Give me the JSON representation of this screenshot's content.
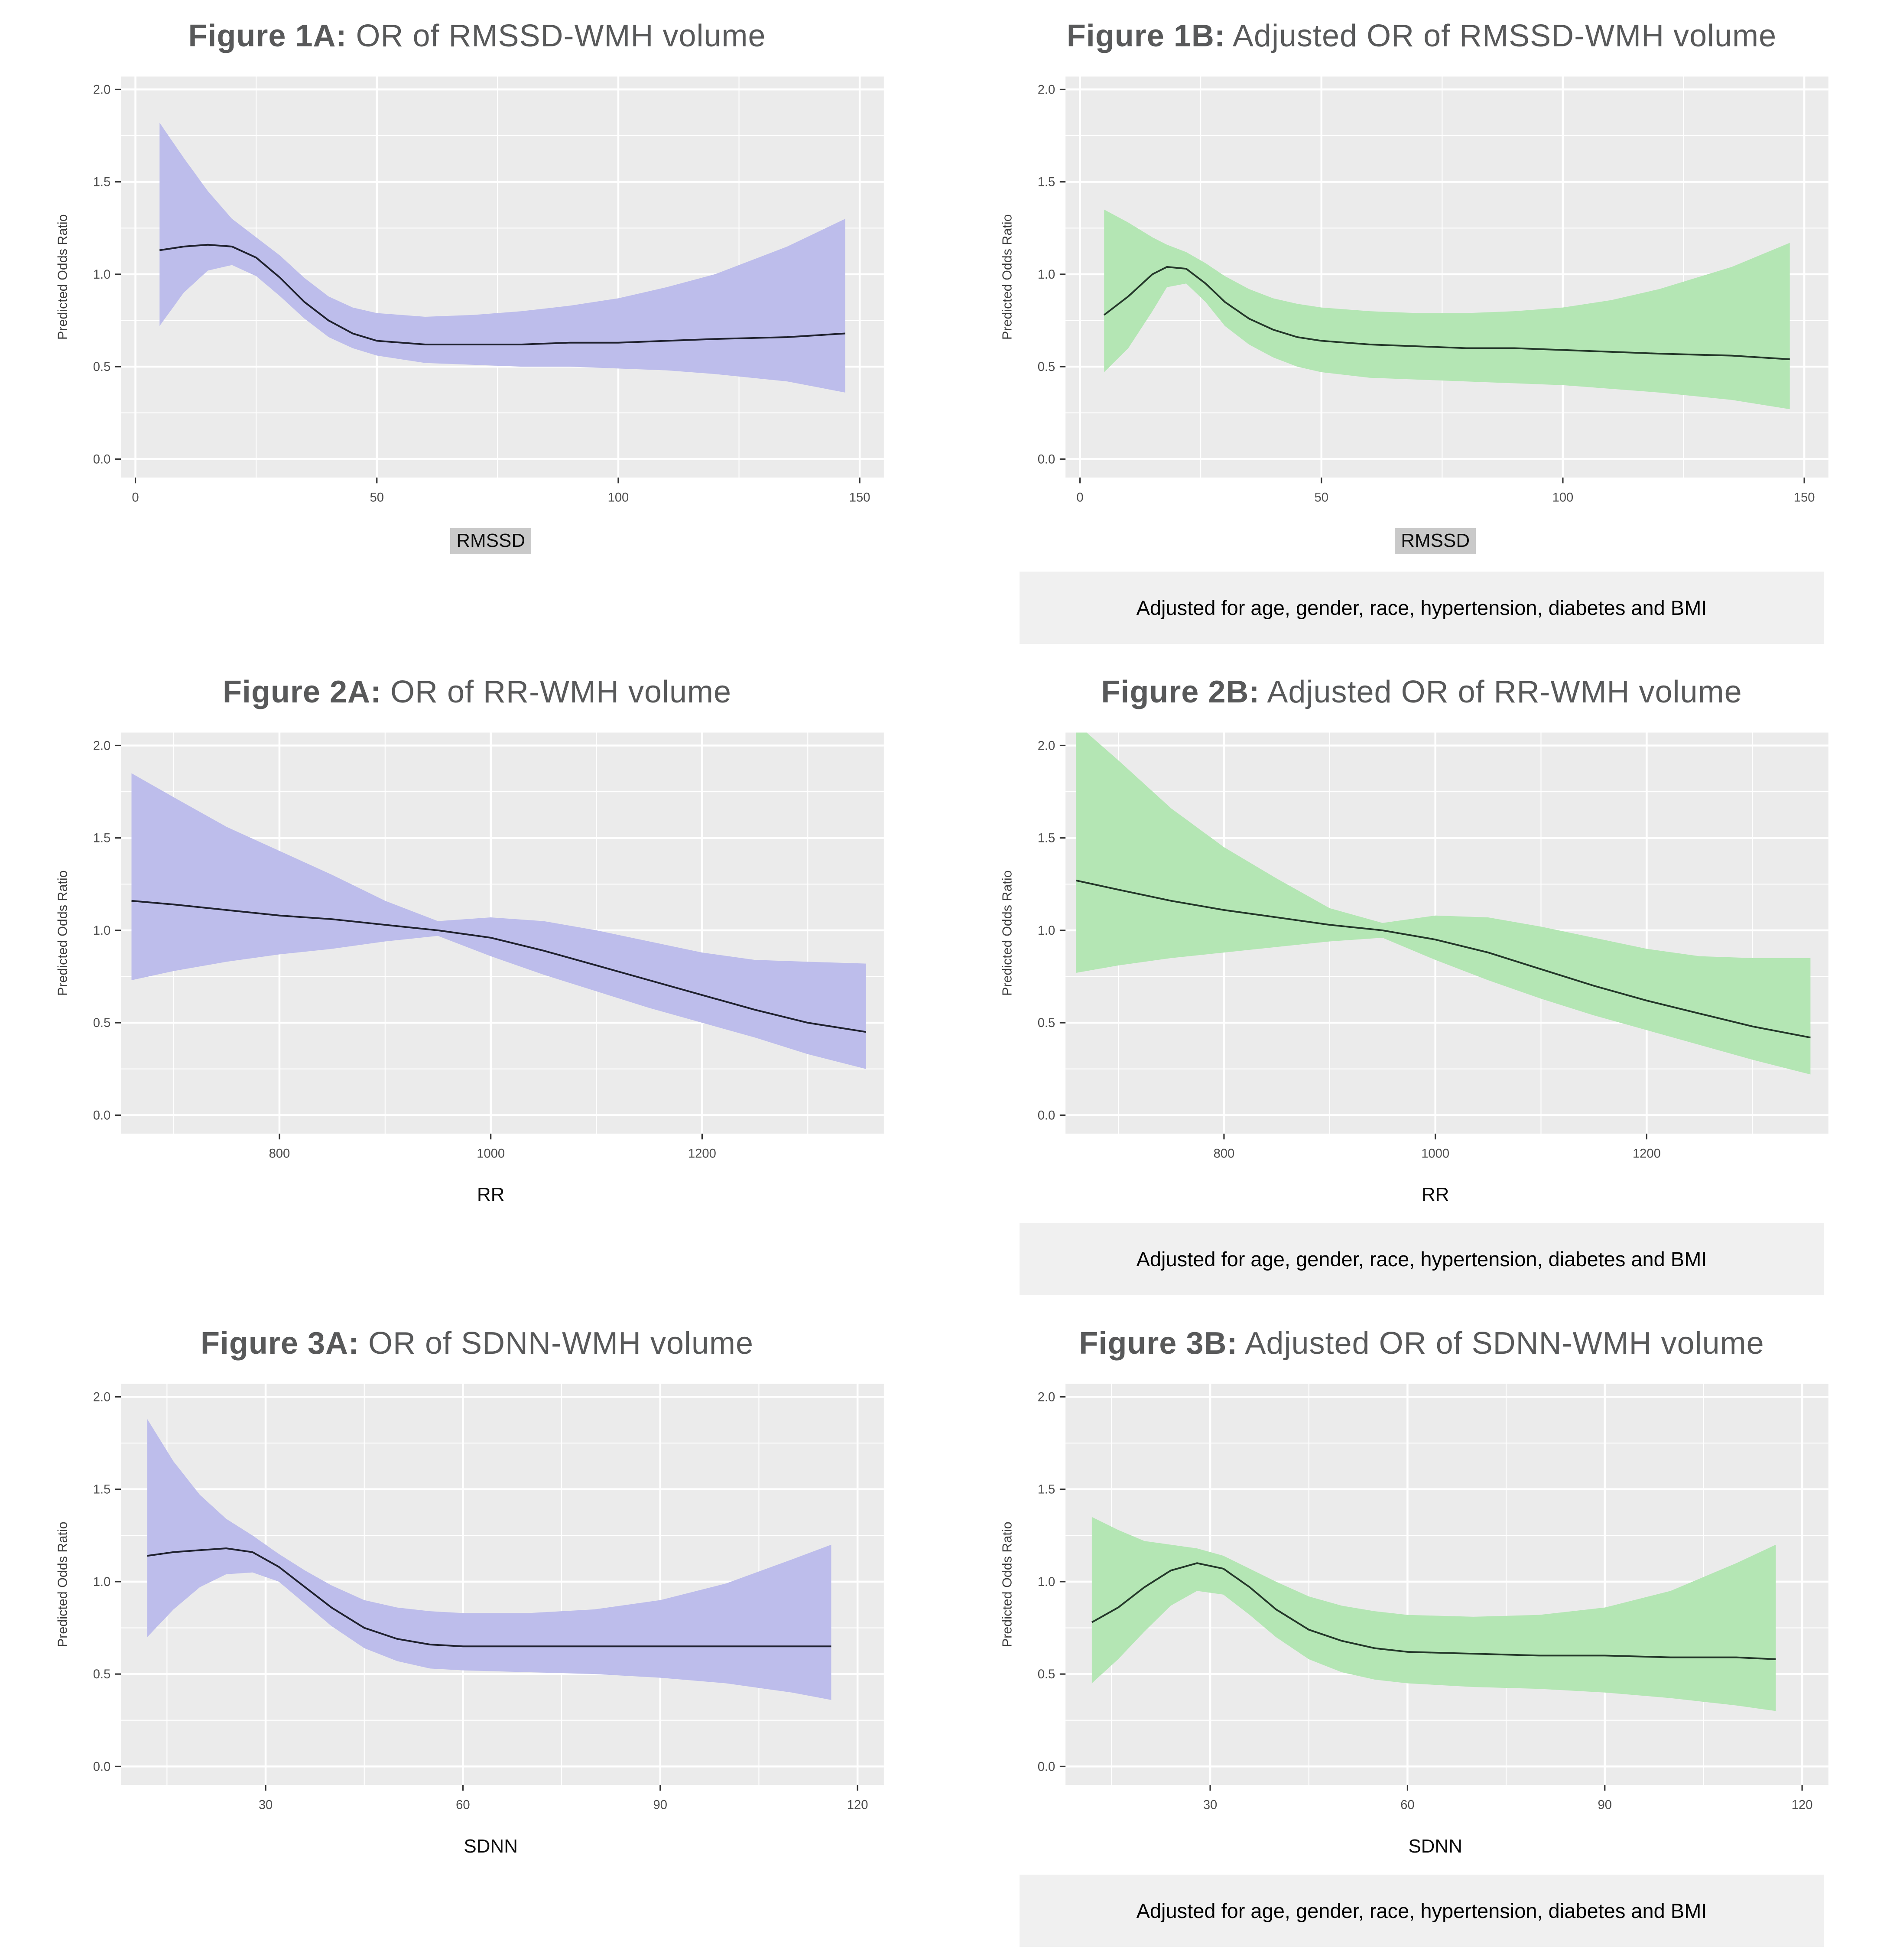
{
  "colors": {
    "panel_bg": "#ebebeb",
    "grid_major": "#ffffff",
    "grid_minor": "#ffffff",
    "tick_mark": "#333333",
    "tick_label": "#4d4d4d",
    "axis_title": "#3d3d3d",
    "figure_title": "#58595a",
    "caption_bg": "#f0f0f0",
    "xlabel_highlight_bg": "#c9c9c9",
    "band_purple": "#bdbdeb",
    "band_green": "#b4e6b4",
    "line_dark_navy": "#20222f",
    "line_dark_green": "#24382a"
  },
  "figures": [
    {
      "id": "1A",
      "title_bold": "Figure 1A:",
      "title_rest": " OR of RMSSD-WMH volume",
      "xlabel": "RMSSD",
      "xlabel_highlight": true,
      "ylabel": "Predicted Odds Ratio",
      "caption": ""
    },
    {
      "id": "1B",
      "title_bold": "Figure 1B:",
      "title_rest": " Adjusted OR of RMSSD-WMH volume",
      "xlabel": "RMSSD",
      "xlabel_highlight": true,
      "ylabel": "Predicted Odds Ratio",
      "caption": "Adjusted for age, gender, race, hypertension, diabetes and BMI"
    },
    {
      "id": "2A",
      "title_bold": "Figure 2A:",
      "title_rest": " OR of RR-WMH volume",
      "xlabel": "RR",
      "xlabel_highlight": false,
      "ylabel": "Predicted Odds Ratio",
      "caption": ""
    },
    {
      "id": "2B",
      "title_bold": "Figure 2B:",
      "title_rest": " Adjusted OR of RR-WMH volume",
      "xlabel": "RR",
      "xlabel_highlight": false,
      "ylabel": "Predicted Odds Ratio",
      "caption": "Adjusted for age, gender, race, hypertension, diabetes and BMI"
    },
    {
      "id": "3A",
      "title_bold": "Figure 3A:",
      "title_rest": " OR of SDNN-WMH volume",
      "xlabel": "SDNN",
      "xlabel_highlight": false,
      "ylabel": "Predicted Odds Ratio",
      "caption": ""
    },
    {
      "id": "3B",
      "title_bold": "Figure 3B:",
      "title_rest": " Adjusted OR of SDNN-WMH volume",
      "xlabel": "SDNN",
      "xlabel_highlight": false,
      "ylabel": "Predicted Odds Ratio",
      "caption": "Adjusted for age, gender, race, hypertension, diabetes and BMI"
    }
  ],
  "chart_data": [
    {
      "type": "line",
      "subtype": "line-with-confidence-band",
      "title": "Figure 1A: OR of RMSSD-WMH volume",
      "xlabel": "RMSSD",
      "ylabel": "Predicted Odds Ratio",
      "xlim": [
        -3,
        155
      ],
      "ylim": [
        -0.1,
        2.07
      ],
      "xticks": [
        0,
        50,
        100,
        150
      ],
      "xminor": [
        25,
        75,
        125
      ],
      "yticks": [
        0,
        0.5,
        1,
        1.5,
        2
      ],
      "yminor": [
        0.25,
        0.75,
        1.25,
        1.75
      ],
      "band_color": "#bdbdeb",
      "line_color": "#20222f",
      "grid": true,
      "legend": "none",
      "x": [
        5,
        10,
        15,
        20,
        25,
        30,
        35,
        40,
        45,
        50,
        60,
        70,
        80,
        90,
        100,
        110,
        120,
        135,
        147
      ],
      "y": [
        1.13,
        1.15,
        1.16,
        1.15,
        1.09,
        0.98,
        0.85,
        0.75,
        0.68,
        0.64,
        0.62,
        0.62,
        0.62,
        0.63,
        0.63,
        0.64,
        0.65,
        0.66,
        0.68
      ],
      "ci_low": [
        0.72,
        0.9,
        1.02,
        1.05,
        0.99,
        0.88,
        0.76,
        0.66,
        0.6,
        0.56,
        0.52,
        0.51,
        0.5,
        0.5,
        0.49,
        0.48,
        0.46,
        0.42,
        0.36
      ],
      "ci_high": [
        1.82,
        1.63,
        1.45,
        1.3,
        1.2,
        1.1,
        0.98,
        0.88,
        0.82,
        0.79,
        0.77,
        0.78,
        0.8,
        0.83,
        0.87,
        0.93,
        1.0,
        1.15,
        1.3
      ]
    },
    {
      "type": "line",
      "subtype": "line-with-confidence-band",
      "title": "Figure 1B: Adjusted OR of RMSSD-WMH volume",
      "xlabel": "RMSSD",
      "ylabel": "Predicted Odds Ratio",
      "xlim": [
        -3,
        155
      ],
      "ylim": [
        -0.1,
        2.07
      ],
      "xticks": [
        0,
        50,
        100,
        150
      ],
      "xminor": [
        25,
        75,
        125
      ],
      "yticks": [
        0,
        0.5,
        1,
        1.5,
        2
      ],
      "yminor": [
        0.25,
        0.75,
        1.25,
        1.75
      ],
      "band_color": "#b4e6b4",
      "line_color": "#24382a",
      "grid": true,
      "legend": "none",
      "x": [
        5,
        10,
        15,
        18,
        22,
        26,
        30,
        35,
        40,
        45,
        50,
        60,
        70,
        80,
        90,
        100,
        110,
        120,
        135,
        147
      ],
      "y": [
        0.78,
        0.88,
        1.0,
        1.04,
        1.03,
        0.95,
        0.85,
        0.76,
        0.7,
        0.66,
        0.64,
        0.62,
        0.61,
        0.6,
        0.6,
        0.59,
        0.58,
        0.57,
        0.56,
        0.54
      ],
      "ci_low": [
        0.47,
        0.6,
        0.8,
        0.93,
        0.95,
        0.85,
        0.72,
        0.62,
        0.55,
        0.5,
        0.47,
        0.44,
        0.43,
        0.42,
        0.41,
        0.4,
        0.38,
        0.36,
        0.32,
        0.27
      ],
      "ci_high": [
        1.35,
        1.28,
        1.2,
        1.16,
        1.12,
        1.06,
        0.99,
        0.92,
        0.87,
        0.84,
        0.82,
        0.8,
        0.79,
        0.79,
        0.8,
        0.82,
        0.86,
        0.92,
        1.04,
        1.17
      ]
    },
    {
      "type": "line",
      "subtype": "line-with-confidence-band",
      "title": "Figure 2A: OR of RR-WMH volume",
      "xlabel": "RR",
      "ylabel": "Predicted Odds Ratio",
      "xlim": [
        650,
        1372
      ],
      "ylim": [
        -0.1,
        2.07
      ],
      "xticks": [
        800,
        1000,
        1200
      ],
      "xminor": [
        700,
        900,
        1100,
        1300
      ],
      "yticks": [
        0,
        0.5,
        1,
        1.5,
        2
      ],
      "yminor": [
        0.25,
        0.75,
        1.25,
        1.75
      ],
      "band_color": "#bdbdeb",
      "line_color": "#20222f",
      "grid": true,
      "legend": "none",
      "x": [
        660,
        700,
        750,
        800,
        850,
        900,
        950,
        1000,
        1050,
        1100,
        1150,
        1200,
        1250,
        1300,
        1355
      ],
      "y": [
        1.16,
        1.14,
        1.11,
        1.08,
        1.06,
        1.03,
        1.0,
        0.96,
        0.89,
        0.81,
        0.73,
        0.65,
        0.57,
        0.5,
        0.45
      ],
      "ci_low": [
        0.73,
        0.78,
        0.83,
        0.87,
        0.9,
        0.94,
        0.97,
        0.86,
        0.76,
        0.67,
        0.58,
        0.5,
        0.42,
        0.33,
        0.25
      ],
      "ci_high": [
        1.85,
        1.72,
        1.56,
        1.43,
        1.3,
        1.16,
        1.05,
        1.07,
        1.05,
        1.0,
        0.94,
        0.88,
        0.84,
        0.83,
        0.82
      ]
    },
    {
      "type": "line",
      "subtype": "line-with-confidence-band",
      "title": "Figure 2B: Adjusted OR of RR-WMH volume",
      "xlabel": "RR",
      "ylabel": "Predicted Odds Ratio",
      "xlim": [
        650,
        1372
      ],
      "ylim": [
        -0.1,
        2.07
      ],
      "xticks": [
        800,
        1000,
        1200
      ],
      "xminor": [
        700,
        900,
        1100,
        1300
      ],
      "yticks": [
        0,
        0.5,
        1,
        1.5,
        2
      ],
      "yminor": [
        0.25,
        0.75,
        1.25,
        1.75
      ],
      "band_color": "#b4e6b4",
      "line_color": "#24382a",
      "grid": true,
      "legend": "none",
      "x": [
        660,
        700,
        750,
        800,
        850,
        900,
        950,
        1000,
        1050,
        1100,
        1150,
        1200,
        1250,
        1300,
        1355
      ],
      "y": [
        1.27,
        1.22,
        1.16,
        1.11,
        1.07,
        1.03,
        1.0,
        0.95,
        0.88,
        0.79,
        0.7,
        0.62,
        0.55,
        0.48,
        0.42
      ],
      "ci_low": [
        0.77,
        0.81,
        0.85,
        0.88,
        0.91,
        0.94,
        0.96,
        0.84,
        0.73,
        0.63,
        0.54,
        0.46,
        0.38,
        0.3,
        0.22
      ],
      "ci_high": [
        2.12,
        1.92,
        1.66,
        1.45,
        1.28,
        1.12,
        1.04,
        1.08,
        1.07,
        1.02,
        0.96,
        0.9,
        0.86,
        0.85,
        0.85
      ]
    },
    {
      "type": "line",
      "subtype": "line-with-confidence-band",
      "title": "Figure 3A: OR of SDNN-WMH volume",
      "xlabel": "SDNN",
      "ylabel": "Predicted Odds Ratio",
      "xlim": [
        8,
        124
      ],
      "ylim": [
        -0.1,
        2.07
      ],
      "xticks": [
        30,
        60,
        90,
        120
      ],
      "xminor": [
        15,
        45,
        75,
        105
      ],
      "yticks": [
        0,
        0.5,
        1,
        1.5,
        2
      ],
      "yminor": [
        0.25,
        0.75,
        1.25,
        1.75
      ],
      "band_color": "#bdbdeb",
      "line_color": "#20222f",
      "grid": true,
      "legend": "none",
      "x": [
        12,
        16,
        20,
        24,
        28,
        32,
        36,
        40,
        45,
        50,
        55,
        60,
        70,
        80,
        90,
        100,
        110,
        116
      ],
      "y": [
        1.14,
        1.16,
        1.17,
        1.18,
        1.16,
        1.08,
        0.97,
        0.86,
        0.75,
        0.69,
        0.66,
        0.65,
        0.65,
        0.65,
        0.65,
        0.65,
        0.65,
        0.65
      ],
      "ci_low": [
        0.7,
        0.85,
        0.97,
        1.04,
        1.05,
        1.0,
        0.88,
        0.76,
        0.64,
        0.57,
        0.53,
        0.52,
        0.51,
        0.5,
        0.48,
        0.45,
        0.4,
        0.36
      ],
      "ci_high": [
        1.88,
        1.65,
        1.47,
        1.34,
        1.25,
        1.15,
        1.06,
        0.98,
        0.9,
        0.86,
        0.84,
        0.83,
        0.83,
        0.85,
        0.9,
        0.99,
        1.12,
        1.2
      ]
    },
    {
      "type": "line",
      "subtype": "line-with-confidence-band",
      "title": "Figure 3B: Adjusted OR of SDNN-WMH volume",
      "xlabel": "SDNN",
      "ylabel": "Predicted Odds Ratio",
      "xlim": [
        8,
        124
      ],
      "ylim": [
        -0.1,
        2.07
      ],
      "xticks": [
        30,
        60,
        90,
        120
      ],
      "xminor": [
        15,
        45,
        75,
        105
      ],
      "yticks": [
        0,
        0.5,
        1,
        1.5,
        2
      ],
      "yminor": [
        0.25,
        0.75,
        1.25,
        1.75
      ],
      "band_color": "#b4e6b4",
      "line_color": "#24382a",
      "grid": true,
      "legend": "none",
      "x": [
        12,
        16,
        20,
        24,
        28,
        32,
        36,
        40,
        45,
        50,
        55,
        60,
        70,
        80,
        90,
        100,
        110,
        116
      ],
      "y": [
        0.78,
        0.86,
        0.97,
        1.06,
        1.1,
        1.07,
        0.97,
        0.85,
        0.74,
        0.68,
        0.64,
        0.62,
        0.61,
        0.6,
        0.6,
        0.59,
        0.59,
        0.58
      ],
      "ci_low": [
        0.45,
        0.58,
        0.73,
        0.87,
        0.95,
        0.93,
        0.82,
        0.7,
        0.58,
        0.51,
        0.47,
        0.45,
        0.43,
        0.42,
        0.4,
        0.37,
        0.33,
        0.3
      ],
      "ci_high": [
        1.35,
        1.28,
        1.22,
        1.2,
        1.18,
        1.14,
        1.07,
        1.0,
        0.92,
        0.87,
        0.84,
        0.82,
        0.81,
        0.82,
        0.86,
        0.95,
        1.1,
        1.2
      ]
    }
  ]
}
